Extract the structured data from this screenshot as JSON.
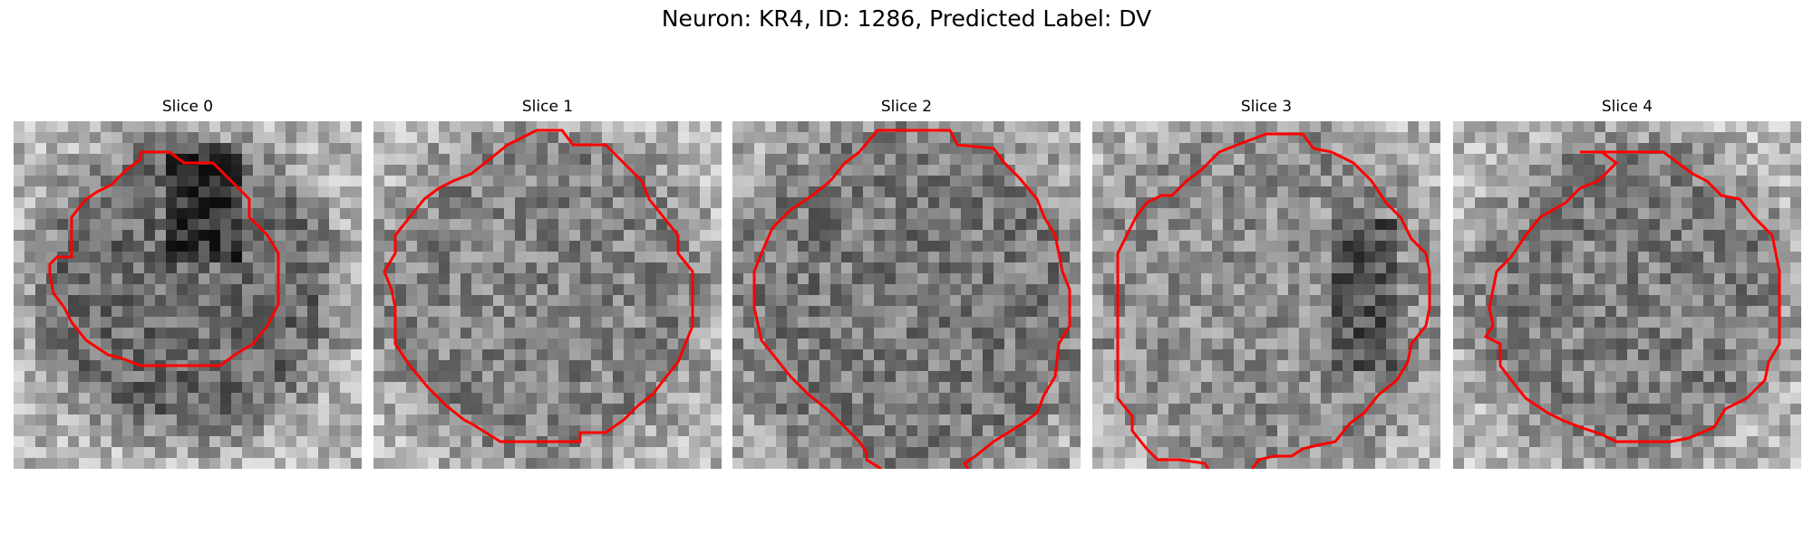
{
  "figure": {
    "title": "Neuron: KR4, ID: 1286, Predicted Label: DV"
  },
  "colors": {
    "contour": "#ff0000",
    "colormap": "gray"
  },
  "panels": [
    {
      "title": "Slice 0"
    },
    {
      "title": "Slice 1"
    },
    {
      "title": "Slice 2"
    },
    {
      "title": "Slice 3"
    },
    {
      "title": "Slice 4"
    }
  ]
}
